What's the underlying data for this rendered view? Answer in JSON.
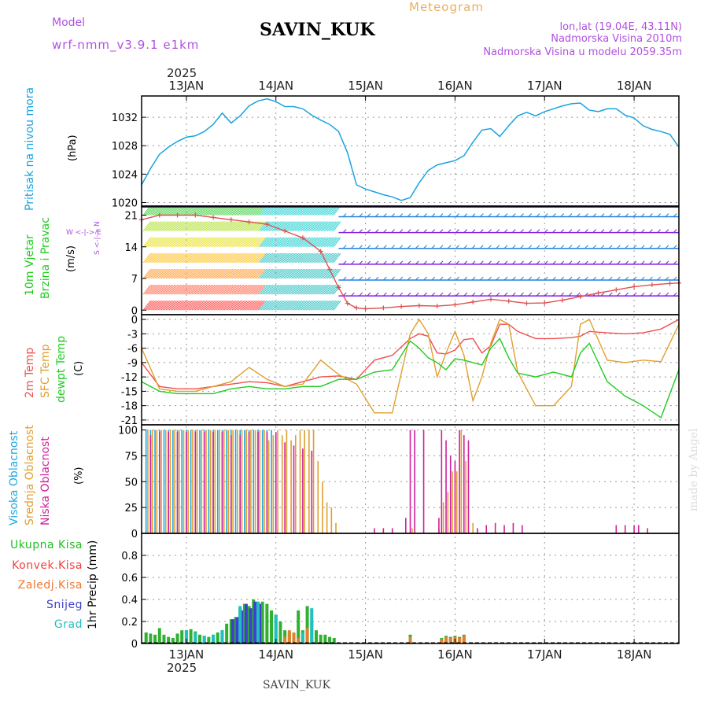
{
  "header": {
    "model_label": "Model",
    "model_name": "wrf-nmm_v3.9.1 e1km",
    "station": "SAVIN_KUK",
    "meteogram_label": "Meteogram",
    "coords": "lon,lat (19.04E, 43.11N)",
    "altitude": "Nadmorska Visina 2010m",
    "model_altitude": "Nadmorska Visina u modelu 2059.35m",
    "year": "2025",
    "footer_station": "SAVIN_KUK",
    "watermark": "made by Angel"
  },
  "x_axis": {
    "ticks": [
      "13JAN",
      "14JAN",
      "15JAN",
      "16JAN",
      "17JAN",
      "18JAN"
    ],
    "tick_days": [
      13,
      14,
      15,
      16,
      17,
      18
    ],
    "range_days": [
      12.5,
      18.5
    ]
  },
  "panels": {
    "pressure": {
      "title": "Pritisak na nivou mora",
      "unit": "(hPa)",
      "ticks": [
        "1032",
        "1028",
        "1024",
        "1020"
      ]
    },
    "wind": {
      "title1": "10m Vjetar",
      "title2": "Brzina i Pravac",
      "unit": "(m/s)",
      "ticks": [
        "21",
        "14",
        "7",
        "0"
      ],
      "compass": "W <-|-> E",
      "compass_v": "S <-|-> N"
    },
    "temp": {
      "title1": "2m Temp",
      "title2": "SFC Temp",
      "title3": "dewpt Temp",
      "unit": "(C)",
      "ticks": [
        "0",
        "-3",
        "-6",
        "-9",
        "-12",
        "-15",
        "-18",
        "-21"
      ]
    },
    "cloud": {
      "title1": "Visoka Oblacnost",
      "title2": "Srednja Oblacnost",
      "title3": "Niska Oblacnost",
      "unit": "(%)",
      "ticks": [
        "100",
        "75",
        "50",
        "25",
        "0"
      ]
    },
    "precip": {
      "legend": [
        "Ukupna Kisa",
        "Konvek.Kisa",
        "Zaledj.Kisa",
        "Snijeg",
        "Grad"
      ],
      "ylabel": "1hr Precip (mm)",
      "ticks": [
        "0.8",
        "0.6",
        "0.4",
        "0.2",
        "0"
      ]
    }
  },
  "colors": {
    "pressure": "#1aa3e0",
    "temp2m": "#f05050",
    "sfc": "#e0a030",
    "dewpt": "#20cc20",
    "cloud_high": "#20a8e0",
    "cloud_mid": "#e0a030",
    "cloud_low": "#d0209a",
    "rain": "#30b030",
    "snow": "#4040d0",
    "grad": "#20c0c0",
    "title_purple": "#b050e0",
    "meteogram_orange": "#e8b060"
  },
  "chart_data": [
    {
      "type": "line",
      "name": "pressure",
      "ylim": [
        1019.5,
        1035
      ],
      "x": [
        12.5,
        12.6,
        12.7,
        12.8,
        12.9,
        13.0,
        13.1,
        13.2,
        13.3,
        13.4,
        13.5,
        13.6,
        13.7,
        13.8,
        13.9,
        14.0,
        14.1,
        14.2,
        14.3,
        14.4,
        14.5,
        14.6,
        14.7,
        14.8,
        14.9,
        15.0,
        15.1,
        15.2,
        15.3,
        15.4,
        15.5,
        15.6,
        15.7,
        15.8,
        15.9,
        16.0,
        16.1,
        16.2,
        16.3,
        16.4,
        16.5,
        16.6,
        16.7,
        16.8,
        16.9,
        17.0,
        17.1,
        17.2,
        17.3,
        17.4,
        17.5,
        17.6,
        17.7,
        17.8,
        17.9,
        18.0,
        18.1,
        18.2,
        18.3,
        18.4,
        18.5
      ],
      "y": [
        1022.5,
        1024.8,
        1026.8,
        1027.8,
        1028.6,
        1029.2,
        1029.4,
        1030.0,
        1031.0,
        1032.6,
        1031.2,
        1032.2,
        1033.6,
        1034.3,
        1034.6,
        1034.2,
        1033.5,
        1033.5,
        1033.2,
        1032.3,
        1031.6,
        1031.0,
        1030.0,
        1027.0,
        1022.5,
        1021.9,
        1021.5,
        1021.1,
        1020.8,
        1020.3,
        1020.7,
        1022.8,
        1024.5,
        1025.3,
        1025.6,
        1025.9,
        1026.6,
        1028.5,
        1030.2,
        1030.4,
        1029.3,
        1030.8,
        1032.2,
        1032.7,
        1032.2,
        1032.8,
        1033.2,
        1033.6,
        1033.9,
        1034.0,
        1033.0,
        1032.8,
        1033.2,
        1033.2,
        1032.3,
        1031.9,
        1030.8,
        1030.3,
        1030.0,
        1029.6,
        1027.8
      ]
    },
    {
      "type": "line",
      "name": "wind_speed",
      "ylim": [
        -1,
        23
      ],
      "x": [
        12.5,
        12.7,
        12.9,
        13.1,
        13.3,
        13.5,
        13.7,
        13.9,
        14.1,
        14.3,
        14.5,
        14.6,
        14.7,
        14.8,
        14.9,
        15.0,
        15.2,
        15.4,
        15.6,
        15.8,
        16.0,
        16.2,
        16.4,
        16.6,
        16.8,
        17.0,
        17.2,
        17.4,
        17.6,
        17.8,
        18.0,
        18.2,
        18.4,
        18.5
      ],
      "y": [
        20,
        21,
        21,
        21,
        20.5,
        20,
        19.5,
        19,
        17.5,
        16,
        13,
        9,
        5,
        1.5,
        0.5,
        0.3,
        0.5,
        0.8,
        1,
        0.9,
        1.2,
        1.8,
        2.4,
        2.0,
        1.5,
        1.6,
        2.2,
        3.0,
        3.8,
        4.5,
        5.2,
        5.6,
        5.9,
        6.0
      ]
    },
    {
      "type": "line",
      "name": "temperature",
      "ylim": [
        -22,
        1
      ],
      "x": [
        12.5,
        12.7,
        12.9,
        13.1,
        13.3,
        13.5,
        13.7,
        13.9,
        14.1,
        14.3,
        14.5,
        14.7,
        14.9,
        15.1,
        15.3,
        15.5,
        15.6,
        15.7,
        15.8,
        15.9,
        16.0,
        16.1,
        16.2,
        16.3,
        16.4,
        16.5,
        16.6,
        16.7,
        16.9,
        17.1,
        17.3,
        17.4,
        17.5,
        17.7,
        17.9,
        18.1,
        18.3,
        18.5
      ],
      "series": [
        {
          "name": "2m Temp",
          "values": [
            -9,
            -14,
            -14.5,
            -14.5,
            -14,
            -13.5,
            -13,
            -13.2,
            -14,
            -13,
            -12,
            -11.8,
            -12.5,
            -8.5,
            -7.5,
            -4,
            -3,
            -3.5,
            -7,
            -7.2,
            -6.4,
            -4.2,
            -4.0,
            -7,
            -5.5,
            -1,
            -1,
            -2.5,
            -4,
            -4,
            -3.8,
            -3.5,
            -2.5,
            -2.8,
            -3.0,
            -2.8,
            -2.0,
            0
          ]
        },
        {
          "name": "SFC Temp",
          "values": [
            -6,
            -14.5,
            -15,
            -15,
            -14,
            -13,
            -10,
            -12.5,
            -14,
            -13.5,
            -8.5,
            -11.5,
            -13.5,
            -19.5,
            -19.5,
            -3,
            0,
            -3,
            -12,
            -7,
            -2.5,
            -7.5,
            -17,
            -12,
            -5,
            0,
            -1,
            -11,
            -18,
            -18,
            -14,
            -1,
            0,
            -8.5,
            -9,
            -8.5,
            -8.8,
            -1
          ]
        },
        {
          "name": "dewpt Temp",
          "values": [
            -13,
            -15,
            -15.5,
            -15.5,
            -15.5,
            -14.5,
            -14,
            -14.5,
            -14.5,
            -14,
            -14,
            -12.5,
            -12.5,
            -11,
            -10.5,
            -4.5,
            -6,
            -8,
            -9,
            -10.5,
            -8.2,
            -8.5,
            -9,
            -9.5,
            -6,
            -4,
            -8,
            -11.2,
            -12,
            -11,
            -12,
            -7,
            -5,
            -13,
            -16,
            -18,
            -20.5,
            -10.5
          ]
        }
      ]
    },
    {
      "type": "bar",
      "name": "cloud_cover",
      "ylim": [
        0,
        105
      ],
      "notes": "hourly bars; high/mid/low cloud percent",
      "series": [
        {
          "name": "Visoka Oblacnost",
          "x": [
            12.55,
            12.6,
            12.65,
            12.7,
            12.75,
            12.8,
            12.85,
            12.9,
            12.95,
            13.0,
            13.05,
            13.1,
            13.15,
            13.2,
            13.25,
            13.3,
            13.35,
            13.4,
            13.45,
            13.5,
            13.55,
            13.6,
            13.65,
            13.7,
            13.75,
            13.8,
            13.85,
            13.9,
            13.95,
            14.0
          ],
          "values": [
            100,
            100,
            100,
            100,
            100,
            100,
            100,
            100,
            100,
            100,
            100,
            100,
            100,
            100,
            100,
            100,
            100,
            100,
            100,
            100,
            100,
            100,
            100,
            100,
            100,
            100,
            100,
            100,
            100,
            95
          ]
        },
        {
          "name": "Srednja Oblacnost",
          "x": [
            12.57,
            12.62,
            12.67,
            12.72,
            12.77,
            12.82,
            12.87,
            12.92,
            12.97,
            13.02,
            13.07,
            13.12,
            13.17,
            13.22,
            13.27,
            13.32,
            13.37,
            13.42,
            13.47,
            13.52,
            13.57,
            13.62,
            13.67,
            13.72,
            13.77,
            13.82,
            13.87,
            13.92,
            13.97,
            14.02,
            14.07,
            14.12,
            14.17,
            14.22,
            14.27,
            14.32,
            14.37,
            14.42,
            14.47,
            14.52,
            14.57,
            14.62,
            14.67,
            15.52,
            15.82,
            15.87,
            15.92,
            15.97,
            16.02,
            16.07,
            16.12,
            16.2
          ],
          "values": [
            100,
            100,
            100,
            100,
            100,
            100,
            100,
            100,
            100,
            100,
            100,
            100,
            100,
            100,
            100,
            100,
            100,
            100,
            100,
            100,
            100,
            100,
            100,
            100,
            100,
            100,
            100,
            90,
            95,
            100,
            95,
            100,
            90,
            95,
            100,
            100,
            100,
            100,
            70,
            50,
            30,
            25,
            10,
            5,
            5,
            30,
            40,
            60,
            60,
            100,
            70,
            10
          ]
        },
        {
          "name": "Niska Oblacnost",
          "x": [
            12.6,
            12.7,
            12.8,
            12.9,
            13.0,
            13.1,
            13.2,
            13.3,
            13.4,
            13.5,
            13.6,
            13.7,
            13.8,
            13.9,
            14.0,
            14.1,
            14.2,
            14.3,
            14.4,
            15.1,
            15.2,
            15.3,
            15.45,
            15.5,
            15.55,
            15.65,
            15.82,
            15.85,
            15.9,
            15.95,
            16.0,
            16.05,
            16.1,
            16.15,
            16.25,
            16.35,
            16.45,
            16.55,
            16.65,
            16.75,
            17.8,
            17.9,
            18.0,
            18.05,
            18.15
          ],
          "values": [
            95,
            98,
            98,
            98,
            98,
            98,
            98,
            98,
            98,
            95,
            95,
            98,
            98,
            98,
            98,
            88,
            85,
            82,
            80,
            5,
            5,
            5,
            15,
            100,
            100,
            100,
            15,
            100,
            90,
            75,
            70,
            100,
            95,
            90,
            5,
            8,
            10,
            8,
            10,
            8,
            8,
            8,
            8,
            8,
            5
          ]
        }
      ]
    },
    {
      "type": "bar",
      "name": "precipitation",
      "ylim": [
        0,
        1.0
      ],
      "series": [
        {
          "name": "Ukupna Kisa",
          "x": [
            12.55,
            12.6,
            12.65,
            12.7,
            12.75,
            12.8,
            12.85,
            12.9,
            12.95,
            13.0,
            13.05,
            13.1,
            13.15,
            13.2,
            13.25,
            13.3,
            13.35,
            13.4,
            13.45,
            13.5,
            13.55,
            13.6,
            13.65,
            13.7,
            13.75,
            13.8,
            13.85,
            13.9,
            13.95,
            14.0,
            14.05,
            14.1,
            14.15,
            14.2,
            14.25,
            14.3,
            14.35,
            14.4,
            14.45,
            14.5,
            14.55,
            14.6,
            14.65,
            15.5,
            15.85,
            15.9,
            15.95,
            16.0,
            16.05,
            16.1
          ],
          "values": [
            0.1,
            0.09,
            0.08,
            0.14,
            0.08,
            0.06,
            0.05,
            0.09,
            0.12,
            0.12,
            0.13,
            0.11,
            0.08,
            0.07,
            0.06,
            0.08,
            0.1,
            0.12,
            0.18,
            0.22,
            0.24,
            0.32,
            0.36,
            0.34,
            0.4,
            0.38,
            0.38,
            0.36,
            0.3,
            0.26,
            0.2,
            0.12,
            0.1,
            0.08,
            0.3,
            0.12,
            0.34,
            0.2,
            0.12,
            0.08,
            0.08,
            0.06,
            0.05,
            0.08,
            0.05,
            0.07,
            0.06,
            0.07,
            0.06,
            0.08
          ]
        },
        {
          "name": "Zaledj.Kisa",
          "x": [
            14.1,
            14.15,
            14.2,
            14.25,
            14.3,
            14.35,
            15.5,
            15.85,
            15.9,
            15.95,
            16.0,
            16.05,
            16.1
          ],
          "values": [
            0.06,
            0.12,
            0.1,
            0.05,
            0.1,
            0.14,
            0.06,
            0.04,
            0.06,
            0.05,
            0.06,
            0.05,
            0.07
          ]
        },
        {
          "name": "Snijeg",
          "x": [
            13.5,
            13.55,
            13.6,
            13.65,
            13.7,
            13.75,
            13.8
          ],
          "values": [
            0.22,
            0.24,
            0.3,
            0.36,
            0.32,
            0.38,
            0.36
          ]
        },
        {
          "name": "Grad",
          "x": [
            13.0,
            13.1,
            13.2,
            13.3,
            13.4,
            13.6,
            13.8,
            14.0,
            14.3,
            14.4
          ],
          "values": [
            0.12,
            0.1,
            0.07,
            0.08,
            0.12,
            0.34,
            0.38,
            0.26,
            0.1,
            0.32
          ]
        }
      ]
    }
  ]
}
